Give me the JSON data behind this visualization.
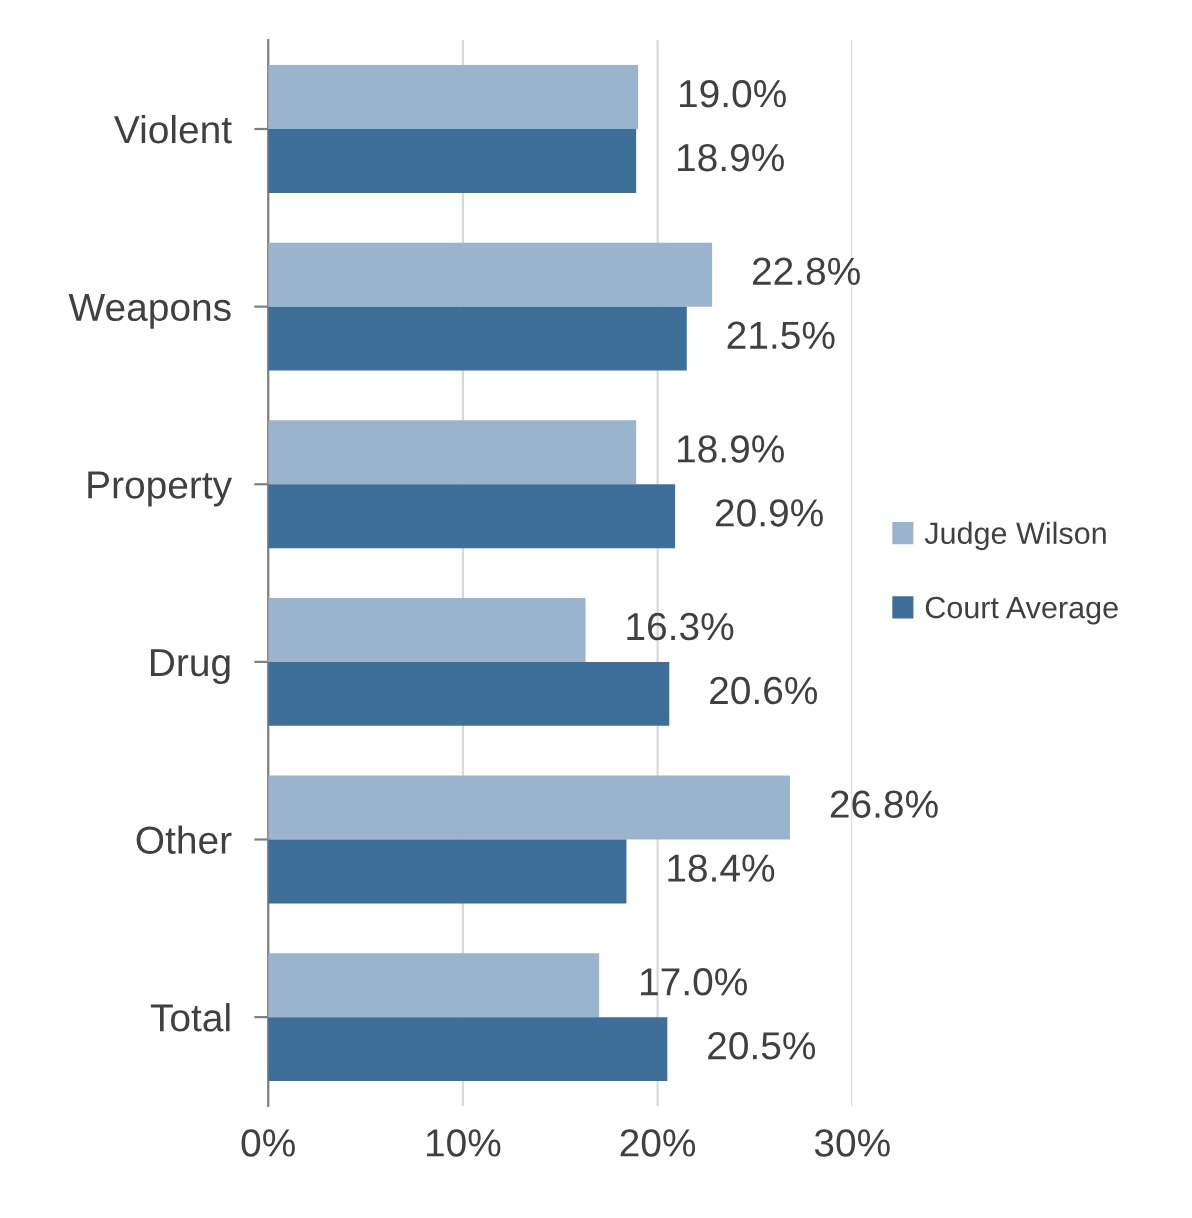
{
  "chart_data": {
    "type": "bar",
    "orientation": "horizontal",
    "categories": [
      "Violent",
      "Weapons",
      "Property",
      "Drug",
      "Other",
      "Total"
    ],
    "series": [
      {
        "name": "Judge Wilson",
        "color": "#9bb4cd",
        "values": [
          19.0,
          22.8,
          18.9,
          16.3,
          26.8,
          17.0
        ],
        "value_labels": [
          "19.0%",
          "22.8%",
          "18.9%",
          "16.3%",
          "26.8%",
          "17.0%"
        ]
      },
      {
        "name": "Court Average",
        "color": "#3e6f99",
        "values": [
          18.9,
          21.5,
          20.9,
          20.6,
          18.4,
          20.5
        ],
        "value_labels": [
          "18.9%",
          "21.5%",
          "20.9%",
          "20.6%",
          "18.4%",
          "20.5%"
        ]
      }
    ],
    "xlim": [
      0,
      30
    ],
    "xticks": [
      {
        "value": 0,
        "label": "0%"
      },
      {
        "value": 10,
        "label": "10%"
      },
      {
        "value": 20,
        "label": "20%"
      },
      {
        "value": 30,
        "label": "30%"
      }
    ],
    "grid": "x",
    "legend": "right"
  }
}
